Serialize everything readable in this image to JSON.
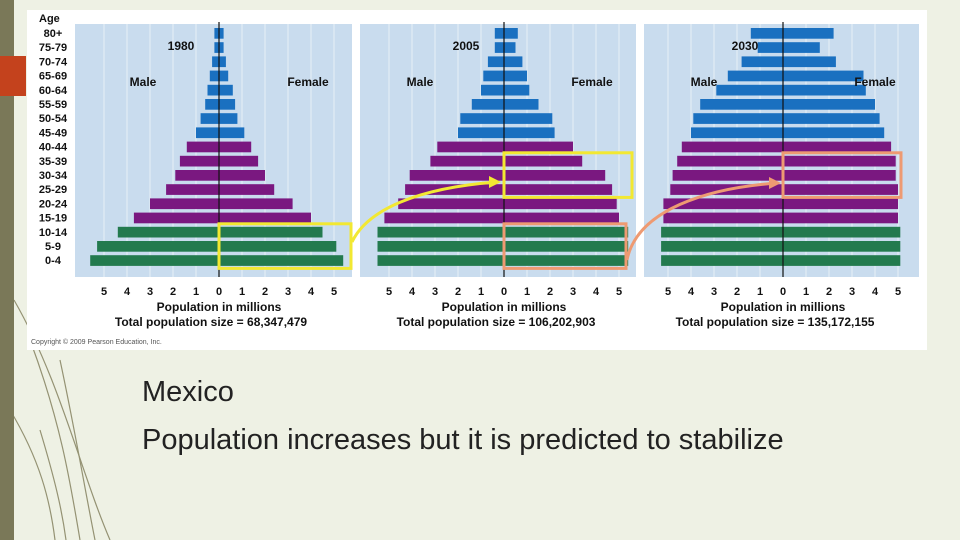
{
  "slide": {
    "caption_country": "Mexico",
    "caption_text": "Population increases but it is predicted to stabilize",
    "colors": {
      "background": "#eef1e4",
      "left_bar": "#7a7858",
      "accent": "#c4421d"
    }
  },
  "figure": {
    "age_heading": "Age",
    "copyright": "Copyright © 2009 Pearson Education, Inc.",
    "colors": {
      "plot_bg": "#c9dcee",
      "postreproductive": "#1a70c0",
      "reproductive": "#7a1880",
      "prereproductive": "#237a4e",
      "highlight_2005": "#f2e832",
      "highlight_2030": "#ee9a72"
    }
  },
  "chart_data": [
    {
      "type": "bar",
      "orientation": "horizontal-population-pyramid",
      "title": "1980",
      "side_labels": [
        "Male",
        "Female"
      ],
      "xlabel": "Population in millions",
      "total_label": "Total population size = 68,347,479",
      "x_ticks": [
        "5",
        "4",
        "3",
        "2",
        "1",
        "0",
        "1",
        "2",
        "3",
        "4",
        "5"
      ],
      "xlim": [
        -5,
        5
      ],
      "categories": [
        "80+",
        "75-79",
        "70-74",
        "65-69",
        "60-64",
        "55-59",
        "50-54",
        "45-49",
        "40-44",
        "35-39",
        "30-34",
        "25-29",
        "20-24",
        "15-19",
        "10-14",
        "5-9",
        "0-4"
      ],
      "series": [
        {
          "name": "Male",
          "values": [
            0.2,
            0.2,
            0.3,
            0.4,
            0.5,
            0.6,
            0.8,
            1.0,
            1.4,
            1.7,
            1.9,
            2.3,
            3.0,
            3.7,
            4.4,
            5.3,
            5.6
          ]
        },
        {
          "name": "Female",
          "values": [
            0.2,
            0.2,
            0.3,
            0.4,
            0.6,
            0.7,
            0.8,
            1.1,
            1.4,
            1.7,
            2.0,
            2.4,
            3.2,
            4.0,
            4.5,
            5.1,
            5.4
          ]
        }
      ]
    },
    {
      "type": "bar",
      "orientation": "horizontal-population-pyramid",
      "title": "2005",
      "side_labels": [
        "Male",
        "Female"
      ],
      "xlabel": "Population in millions",
      "total_label": "Total population size = 106,202,903",
      "x_ticks": [
        "5",
        "4",
        "3",
        "2",
        "1",
        "0",
        "1",
        "2",
        "3",
        "4",
        "5"
      ],
      "xlim": [
        -5,
        5
      ],
      "categories": [
        "80+",
        "75-79",
        "70-74",
        "65-69",
        "60-64",
        "55-59",
        "50-54",
        "45-49",
        "40-44",
        "35-39",
        "30-34",
        "25-29",
        "20-24",
        "15-19",
        "10-14",
        "5-9",
        "0-4"
      ],
      "series": [
        {
          "name": "Male",
          "values": [
            0.4,
            0.4,
            0.7,
            0.9,
            1.0,
            1.4,
            1.9,
            2.0,
            2.9,
            3.2,
            4.1,
            4.3,
            4.6,
            5.2,
            5.5,
            5.5,
            5.5
          ]
        },
        {
          "name": "Female",
          "values": [
            0.6,
            0.5,
            0.8,
            1.0,
            1.1,
            1.5,
            2.1,
            2.2,
            3.0,
            3.4,
            4.4,
            4.7,
            4.9,
            5.0,
            5.4,
            5.4,
            5.4
          ]
        }
      ]
    },
    {
      "type": "bar",
      "orientation": "horizontal-population-pyramid",
      "title": "2030",
      "side_labels": [
        "Male",
        "Female"
      ],
      "xlabel": "Population in millions",
      "total_label": "Total population size = 135,172,155",
      "x_ticks": [
        "5",
        "4",
        "3",
        "2",
        "1",
        "0",
        "1",
        "2",
        "3",
        "4",
        "5"
      ],
      "xlim": [
        -5,
        5
      ],
      "categories": [
        "80+",
        "75-79",
        "70-74",
        "65-69",
        "60-64",
        "55-59",
        "50-54",
        "45-49",
        "40-44",
        "35-39",
        "30-34",
        "25-29",
        "20-24",
        "15-19",
        "10-14",
        "5-9",
        "0-4"
      ],
      "series": [
        {
          "name": "Male",
          "values": [
            1.4,
            1.1,
            1.8,
            2.4,
            2.9,
            3.6,
            3.9,
            4.0,
            4.4,
            4.6,
            4.8,
            4.9,
            5.2,
            5.2,
            5.3,
            5.3,
            5.3
          ]
        },
        {
          "name": "Female",
          "values": [
            2.2,
            1.6,
            2.3,
            3.5,
            3.6,
            4.0,
            4.2,
            4.4,
            4.7,
            4.9,
            4.9,
            5.0,
            5.0,
            5.0,
            5.1,
            5.1,
            5.1
          ]
        }
      ]
    }
  ]
}
